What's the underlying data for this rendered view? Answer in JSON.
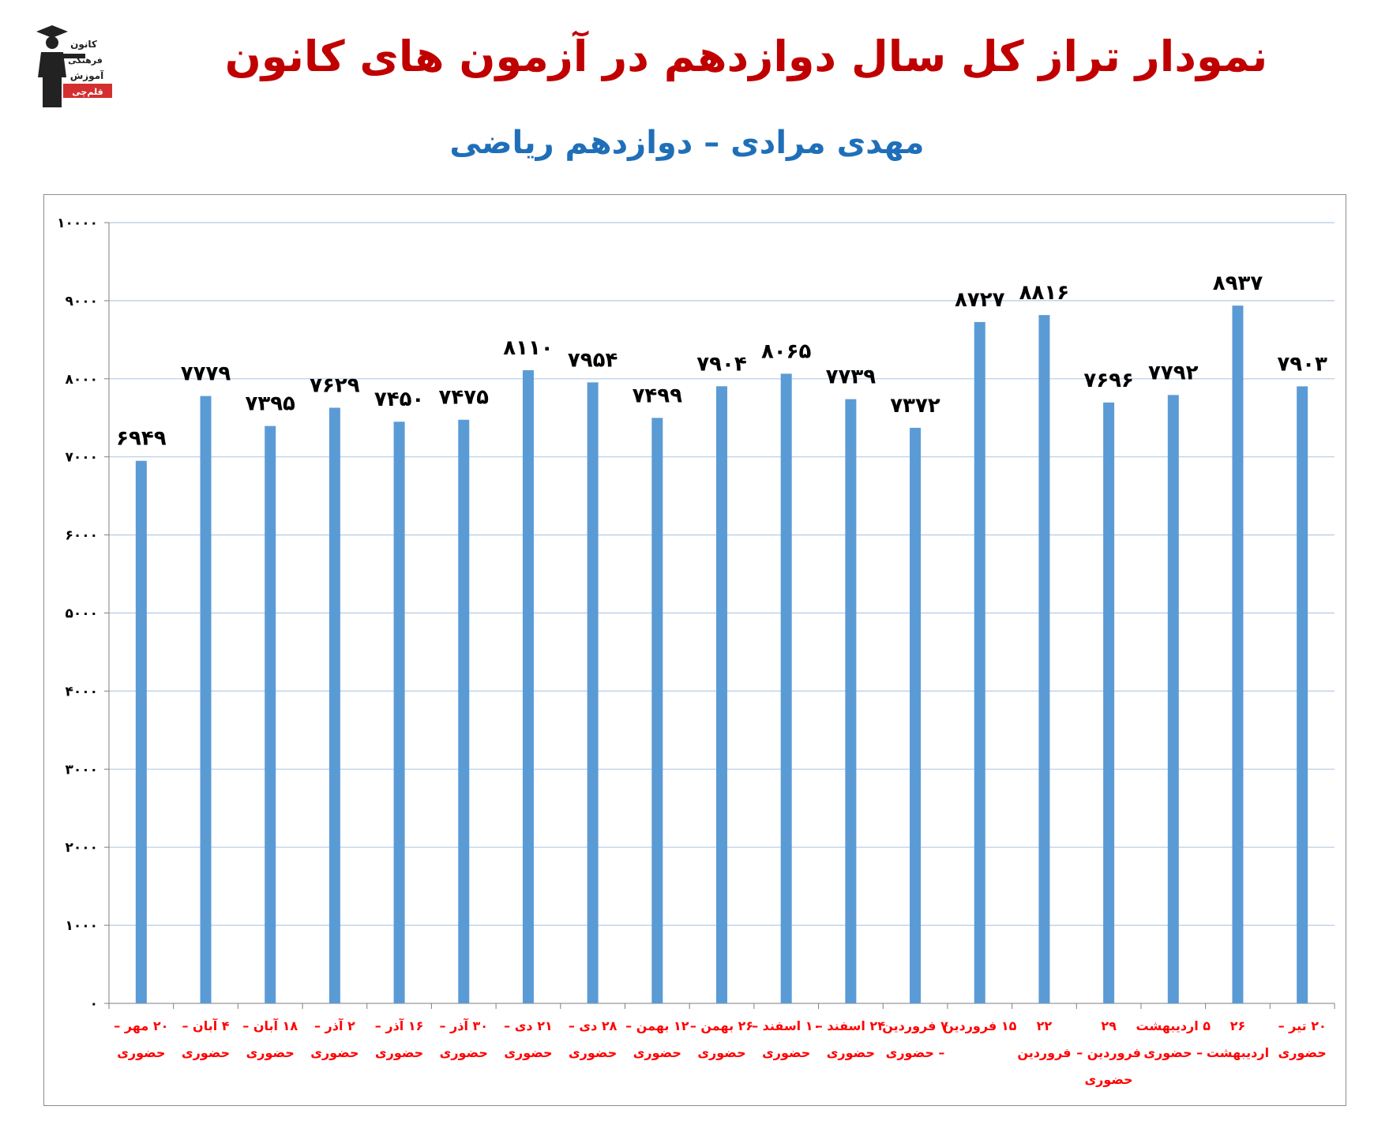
{
  "logo": {
    "icon": "graduate-figure-icon",
    "lines": [
      "کانون",
      "فرهنگی",
      "آموزش"
    ],
    "badge": "قلم‌چی",
    "badge_color": "#d32f2f"
  },
  "header": {
    "title": "نمودار تراز کل سال دوازدهم در آزمون های کانون",
    "subtitle": "مهدی مرادی – دوازدهم ریاضی"
  },
  "colors": {
    "title": "#c00000",
    "subtitle": "#1f6fb8",
    "bar": "#5b9bd5",
    "category_label": "#ff0000",
    "value_label": "#000000",
    "grid": "#b4cce6"
  },
  "chart_data": {
    "type": "bar",
    "title": "نمودار تراز کل سال دوازدهم در آزمون های کانون",
    "xlabel": "",
    "ylabel": "",
    "ylim": [
      0,
      10000
    ],
    "y_ticks": [
      0,
      1000,
      2000,
      3000,
      4000,
      5000,
      6000,
      7000,
      8000,
      9000,
      10000
    ],
    "y_tick_labels": [
      "۰",
      "۱۰۰۰",
      "۲۰۰۰",
      "۳۰۰۰",
      "۴۰۰۰",
      "۵۰۰۰",
      "۶۰۰۰",
      "۷۰۰۰",
      "۸۰۰۰",
      "۹۰۰۰",
      "۱۰۰۰۰"
    ],
    "grid": true,
    "legend": "none",
    "categories": [
      [
        "۲۰ مهر –",
        "حضوری"
      ],
      [
        "۴ آبان –",
        "حضوری"
      ],
      [
        "۱۸ آبان –",
        "حضوری"
      ],
      [
        "۲ آذر –",
        "حضوری"
      ],
      [
        "۱۶ آذر –",
        "حضوری"
      ],
      [
        "۳۰ آذر –",
        "حضوری"
      ],
      [
        "۲۱ دی –",
        "حضوری"
      ],
      [
        "۲۸ دی –",
        "حضوری"
      ],
      [
        "۱۲ بهمن –",
        "حضوری"
      ],
      [
        "۲۶ بهمن –",
        "حضوری"
      ],
      [
        "۱۰ اسفند –",
        "حضوری"
      ],
      [
        "۲۴ اسفند –",
        "حضوری"
      ],
      [
        "۷ فروردین",
        "– حضوری"
      ],
      [
        "۱۵ فروردین",
        ""
      ],
      [
        "۲۲",
        "فروردین"
      ],
      [
        "۲۹",
        "فروردین –",
        "حضوری"
      ],
      [
        "۵ اردیبهشت",
        "– حضوری"
      ],
      [
        "۲۶",
        "اردیبهشت"
      ],
      [
        "۲۰ تیر –",
        "حضوری"
      ]
    ],
    "values": [
      6949,
      7779,
      7395,
      7629,
      7450,
      7475,
      8110,
      7954,
      7499,
      7904,
      8065,
      7739,
      7372,
      8727,
      8816,
      7696,
      7792,
      8937,
      7903
    ],
    "value_labels": [
      "۶۹۴۹",
      "۷۷۷۹",
      "۷۳۹۵",
      "۷۶۲۹",
      "۷۴۵۰",
      "۷۴۷۵",
      "۸۱۱۰",
      "۷۹۵۴",
      "۷۴۹۹",
      "۷۹۰۴",
      "۸۰۶۵",
      "۷۷۳۹",
      "۷۳۷۲",
      "۸۷۲۷",
      "۸۸۱۶",
      "۷۶۹۶",
      "۷۷۹۲",
      "۸۹۳۷",
      "۷۹۰۳"
    ]
  }
}
